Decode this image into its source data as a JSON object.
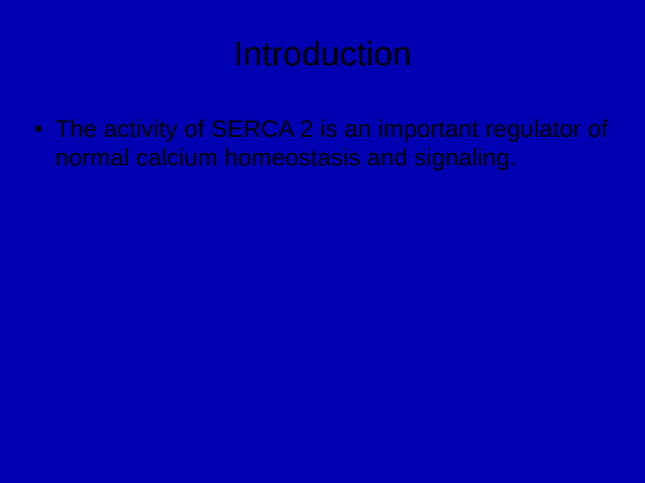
{
  "slide": {
    "background_color": "#0000b3",
    "text_color": "#000000",
    "title": "Introduction",
    "title_fontsize": 38,
    "body_fontsize": 27,
    "font_family": "Arial",
    "bullets": [
      {
        "marker": "•",
        "text": "The activity of SERCA 2 is an important regulator of normal calcium homeostasis and signaling."
      }
    ]
  }
}
